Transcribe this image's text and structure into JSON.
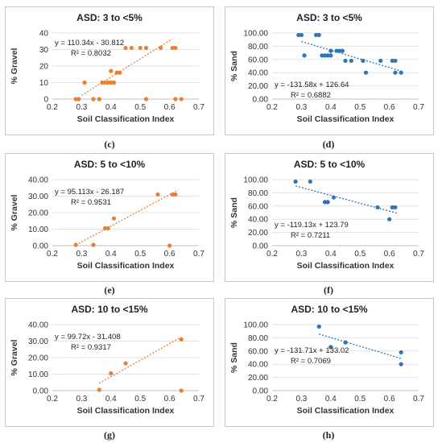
{
  "chart_data": [
    {
      "type": "scatter",
      "panel_label": "(c)",
      "title": "ASD: 3 to <5%",
      "xlabel": "Soil Classification Index",
      "ylabel": "% Gravel",
      "xlim": [
        0.2,
        0.7
      ],
      "ylim": [
        0,
        40
      ],
      "xticks": [
        "0.2",
        "0.3",
        "0.4",
        "0.5",
        "0.6",
        "0.7"
      ],
      "yticks": [
        "0",
        "10",
        "20",
        "30",
        "40"
      ],
      "color": "#ed7d31",
      "equation": "y = 110.34x - 30.812",
      "r2": "R² = 0.8032",
      "trend": {
        "x1": 0.3,
        "x2": 0.61
      },
      "points": [
        [
          0.28,
          0
        ],
        [
          0.29,
          0
        ],
        [
          0.31,
          10
        ],
        [
          0.34,
          0
        ],
        [
          0.36,
          0
        ],
        [
          0.37,
          10
        ],
        [
          0.38,
          10
        ],
        [
          0.39,
          10
        ],
        [
          0.4,
          10
        ],
        [
          0.41,
          10
        ],
        [
          0.4,
          17
        ],
        [
          0.42,
          16
        ],
        [
          0.43,
          16
        ],
        [
          0.45,
          31
        ],
        [
          0.47,
          31
        ],
        [
          0.5,
          31
        ],
        [
          0.52,
          31
        ],
        [
          0.52,
          0
        ],
        [
          0.57,
          31
        ],
        [
          0.61,
          31
        ],
        [
          0.62,
          31
        ],
        [
          0.62,
          0
        ],
        [
          0.64,
          0
        ]
      ]
    },
    {
      "type": "scatter",
      "panel_label": "(d)",
      "title": "ASD: 3 to <5%",
      "xlabel": "Soil Classification Index",
      "ylabel": "% Sand",
      "xlim": [
        0.2,
        0.7
      ],
      "ylim": [
        0,
        100
      ],
      "xticks": [
        "0.2",
        "0.3",
        "0.4",
        "0.5",
        "0.6",
        "0.7"
      ],
      "yticks": [
        "0.00",
        "20.00",
        "40.00",
        "60.00",
        "80.00",
        "100.00"
      ],
      "color": "#2e75b6",
      "equation": "y = -131.58x + 126.64",
      "r2": "R² = 0.6882",
      "trend": {
        "x1": 0.3,
        "x2": 0.64
      },
      "points": [
        [
          0.29,
          97
        ],
        [
          0.3,
          97
        ],
        [
          0.31,
          66
        ],
        [
          0.35,
          97
        ],
        [
          0.36,
          97
        ],
        [
          0.37,
          66
        ],
        [
          0.38,
          66
        ],
        [
          0.39,
          66
        ],
        [
          0.4,
          66
        ],
        [
          0.4,
          73
        ],
        [
          0.42,
          73
        ],
        [
          0.43,
          73
        ],
        [
          0.44,
          73
        ],
        [
          0.45,
          58
        ],
        [
          0.47,
          58
        ],
        [
          0.51,
          58
        ],
        [
          0.52,
          40
        ],
        [
          0.57,
          58
        ],
        [
          0.61,
          58
        ],
        [
          0.62,
          58
        ],
        [
          0.62,
          40
        ],
        [
          0.64,
          40
        ]
      ]
    },
    {
      "type": "scatter",
      "panel_label": "(e)",
      "title": "ASD: 5 to <10%",
      "xlabel": "Soil Classification Index",
      "ylabel": "% Gravel",
      "xlim": [
        0.2,
        0.7
      ],
      "ylim": [
        0,
        40
      ],
      "xticks": [
        "0.2",
        "0.3",
        "0.4",
        "0.5",
        "0.6",
        "0.7"
      ],
      "yticks": [
        "0.00",
        "10.00",
        "20.00",
        "30.00",
        "40.00"
      ],
      "color": "#ed7d31",
      "equation": "y = 95.113x - 26.187",
      "r2": "R² = 0.9531",
      "trend": {
        "x1": 0.28,
        "x2": 0.63
      },
      "points": [
        [
          0.28,
          0.5
        ],
        [
          0.34,
          0.5
        ],
        [
          0.38,
          10.5
        ],
        [
          0.39,
          10.5
        ],
        [
          0.41,
          16.5
        ],
        [
          0.56,
          31
        ],
        [
          0.6,
          0
        ],
        [
          0.61,
          31
        ],
        [
          0.62,
          31
        ]
      ]
    },
    {
      "type": "scatter",
      "panel_label": "(f)",
      "title": "ASD: 5 to <10%",
      "xlabel": "Soil Classification Index",
      "ylabel": "% Sand",
      "xlim": [
        0.2,
        0.7
      ],
      "ylim": [
        0,
        100
      ],
      "xticks": [
        "0.2",
        "0.3",
        "0.4",
        "0.5",
        "0.6",
        "0.7"
      ],
      "yticks": [
        "0.00",
        "20.00",
        "40.00",
        "60.00",
        "80.00",
        "100.00"
      ],
      "color": "#2e75b6",
      "equation": "y = -119.13x + 123.79",
      "r2": "R² = 0.7211",
      "trend": {
        "x1": 0.28,
        "x2": 0.63
      },
      "points": [
        [
          0.28,
          97
        ],
        [
          0.33,
          97
        ],
        [
          0.38,
          66
        ],
        [
          0.39,
          66
        ],
        [
          0.41,
          73
        ],
        [
          0.56,
          58
        ],
        [
          0.6,
          40
        ],
        [
          0.61,
          58
        ],
        [
          0.62,
          58
        ]
      ]
    },
    {
      "type": "scatter",
      "panel_label": "(g)",
      "title": "ASD: 10 to <15%",
      "xlabel": "Soil Classification Index",
      "ylabel": "% Gravel",
      "xlim": [
        0.2,
        0.7
      ],
      "ylim": [
        0,
        40
      ],
      "xticks": [
        "0.2",
        "0.3",
        "0.4",
        "0.5",
        "0.6",
        "0.7"
      ],
      "yticks": [
        "0.00",
        "10.00",
        "20.00",
        "30.00",
        "40.00"
      ],
      "color": "#ed7d31",
      "equation": "y = 99.72x - 31.408",
      "r2": "R² = 0.9317",
      "trend": {
        "x1": 0.36,
        "x2": 0.64
      },
      "points": [
        [
          0.36,
          0.5
        ],
        [
          0.4,
          10.5
        ],
        [
          0.45,
          16.5
        ],
        [
          0.64,
          31
        ],
        [
          0.64,
          0
        ]
      ]
    },
    {
      "type": "scatter",
      "panel_label": "(h)",
      "title": "ASD: 10 to <15%",
      "xlabel": "Soil Classification Index",
      "ylabel": "% Sand",
      "xlim": [
        0.2,
        0.7
      ],
      "ylim": [
        0,
        100
      ],
      "xticks": [
        "0.2",
        "0.3",
        "0.4",
        "0.5",
        "0.6",
        "0.7"
      ],
      "yticks": [
        "0.00",
        "20.00",
        "40.00",
        "60.00",
        "80.00",
        "100.00"
      ],
      "color": "#2e75b6",
      "equation": "y = -131.71x + 133.02",
      "r2": "R² = 0.7069",
      "trend": {
        "x1": 0.36,
        "x2": 0.64
      },
      "points": [
        [
          0.36,
          97
        ],
        [
          0.4,
          66
        ],
        [
          0.45,
          73
        ],
        [
          0.64,
          58
        ],
        [
          0.64,
          40
        ]
      ]
    }
  ]
}
